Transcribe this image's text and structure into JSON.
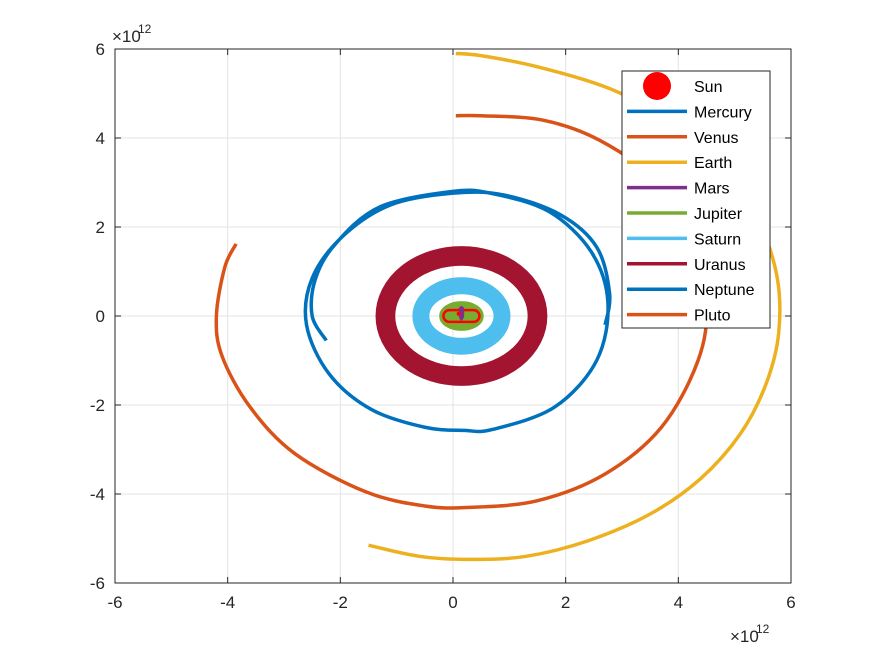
{
  "chart_data": {
    "type": "line",
    "title": "",
    "xlabel": "",
    "ylabel": "",
    "xlim": [
      -6,
      6
    ],
    "ylim": [
      -6,
      6
    ],
    "x_ticks": [
      "-6",
      "-4",
      "-2",
      "0",
      "2",
      "4",
      "6"
    ],
    "y_ticks": [
      "-6",
      "-4",
      "-2",
      "0",
      "2",
      "4",
      "6"
    ],
    "x_exponent": {
      "base": "×10",
      "power": "12"
    },
    "y_exponent": {
      "base": "×10",
      "power": "12"
    },
    "grid": true,
    "legend_position": "top-right",
    "series": [
      {
        "name": "Sun",
        "color": "#FF0000",
        "marker": "filled-circle",
        "points": [
          [
            0.1,
            0.05
          ]
        ]
      },
      {
        "name": "Mercury",
        "color": "#0072BD",
        "shape": "ellipse-band",
        "center": [
          0.15,
          0.05
        ],
        "rx": 0.02,
        "ry": 0.05,
        "width": 0.02
      },
      {
        "name": "Venus",
        "color": "#D95319",
        "shape": "ellipse-band",
        "center": [
          0.15,
          0.05
        ],
        "rx": 0.03,
        "ry": 0.08,
        "width": 0.02
      },
      {
        "name": "Earth",
        "color": "#EDB120",
        "shape": "ellipse-band",
        "center": [
          0.15,
          0.05
        ],
        "rx": 0.04,
        "ry": 0.11,
        "width": 0.02
      },
      {
        "name": "Mars",
        "color": "#7E2F8E",
        "shape": "ellipse-band",
        "center": [
          0.15,
          0.05
        ],
        "rx": 0.05,
        "ry": 0.15,
        "width": 0.03
      },
      {
        "name": "Jupiter",
        "color": "#77AC30",
        "shape": "ellipse-band",
        "center": [
          0.15,
          0.0
        ],
        "rx": 0.32,
        "ry": 0.24,
        "width": 0.15
      },
      {
        "name": "Saturn",
        "color": "#4DBEEE",
        "shape": "ellipse-band",
        "center": [
          0.15,
          0.0
        ],
        "rx": 0.72,
        "ry": 0.68,
        "width": 0.3
      },
      {
        "name": "Uranus",
        "color": "#A2142F",
        "shape": "ellipse-band",
        "center": [
          0.15,
          0.0
        ],
        "rx": 1.35,
        "ry": 1.35,
        "width": 0.35
      },
      {
        "name": "Neptune",
        "color": "#0072BD",
        "points": [
          [
            -2.25,
            -0.55
          ],
          [
            -2.5,
            0.0
          ],
          [
            -2.45,
            0.8
          ],
          [
            -2.1,
            1.6
          ],
          [
            -1.3,
            2.45
          ],
          [
            0.0,
            2.8
          ],
          [
            0.7,
            2.75
          ],
          [
            1.7,
            2.35
          ],
          [
            2.45,
            1.45
          ],
          [
            2.75,
            0.3
          ],
          [
            2.55,
            -1.0
          ],
          [
            1.8,
            -2.05
          ],
          [
            0.7,
            -2.55
          ],
          [
            0.2,
            -2.57
          ],
          [
            -0.5,
            -2.5
          ],
          [
            -1.45,
            -2.1
          ],
          [
            -2.2,
            -1.3
          ],
          [
            -2.6,
            -0.2
          ],
          [
            -2.5,
            0.85
          ],
          [
            -1.95,
            1.8
          ],
          [
            -1.1,
            2.5
          ],
          [
            0.0,
            2.76
          ],
          [
            0.9,
            2.72
          ],
          [
            1.9,
            2.28
          ],
          [
            2.55,
            1.55
          ],
          [
            2.78,
            0.5
          ],
          [
            2.7,
            -0.2
          ]
        ]
      },
      {
        "name": "Pluto",
        "color": "#D95319",
        "points": [
          [
            -3.85,
            1.62
          ],
          [
            -4.05,
            1.1
          ],
          [
            -4.2,
            0.0
          ],
          [
            -4.1,
            -0.9
          ],
          [
            -3.6,
            -2.05
          ],
          [
            -2.8,
            -3.1
          ],
          [
            -1.55,
            -3.95
          ],
          [
            -0.5,
            -4.27
          ],
          [
            0.3,
            -4.3
          ],
          [
            1.5,
            -4.15
          ],
          [
            2.7,
            -3.55
          ],
          [
            3.7,
            -2.5
          ],
          [
            4.35,
            -1.0
          ],
          [
            4.5,
            0.3
          ],
          [
            4.25,
            1.8
          ],
          [
            3.6,
            3.05
          ],
          [
            2.6,
            3.95
          ],
          [
            1.6,
            4.4
          ],
          [
            0.5,
            4.5
          ],
          [
            0.05,
            4.5
          ]
        ]
      },
      {
        "name": "Earth",
        "color": "#EDB120",
        "points": [
          [
            -1.5,
            -5.15
          ],
          [
            -0.6,
            -5.4
          ],
          [
            0.3,
            -5.47
          ],
          [
            1.3,
            -5.4
          ],
          [
            2.4,
            -5.05
          ],
          [
            3.5,
            -4.45
          ],
          [
            4.4,
            -3.65
          ],
          [
            5.1,
            -2.65
          ],
          [
            5.55,
            -1.55
          ],
          [
            5.78,
            -0.4
          ],
          [
            5.75,
            0.9
          ],
          [
            5.4,
            2.2
          ],
          [
            4.8,
            3.35
          ],
          [
            3.9,
            4.35
          ],
          [
            2.8,
            5.1
          ],
          [
            1.5,
            5.6
          ],
          [
            0.5,
            5.85
          ],
          [
            0.05,
            5.9
          ]
        ]
      }
    ],
    "legend_entries": [
      "Sun",
      "Mercury",
      "Venus",
      "Earth",
      "Mars",
      "Jupiter",
      "Saturn",
      "Uranus",
      "Neptune",
      "Pluto"
    ]
  }
}
